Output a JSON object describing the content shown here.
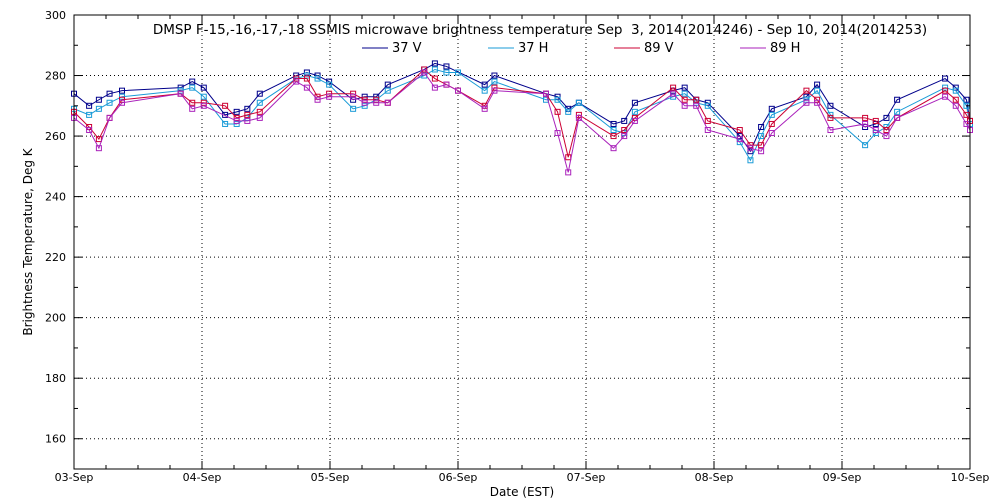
{
  "chart_data": {
    "type": "line",
    "title": "DMSP F-15,-16,-17,-18 SSMIS microwave brightness temperature Sep  3, 2014(2014246) - Sep 10, 2014(2014253)",
    "xlabel": "Date (EST)",
    "ylabel": "Brightness Temperature, Deg K",
    "ylim": [
      150,
      300
    ],
    "yticks": [
      160,
      180,
      200,
      220,
      240,
      260,
      280,
      300
    ],
    "xlim": [
      "2014-09-03",
      "2014-09-10"
    ],
    "xticks": [
      "03-Sep",
      "04-Sep",
      "05-Sep",
      "06-Sep",
      "07-Sep",
      "08-Sep",
      "09-Sep",
      "10-Sep"
    ],
    "grid": true,
    "legend_position": "top-center",
    "series": [
      {
        "name": "37 V",
        "color": "#00008b",
        "points": [
          {
            "x": "2014-09-03T00:00",
            "y": 274
          },
          {
            "x": "2014-09-03T02:50",
            "y": 270
          },
          {
            "x": "2014-09-03T04:40",
            "y": 272
          },
          {
            "x": "2014-09-03T06:40",
            "y": 274
          },
          {
            "x": "2014-09-03T09:00",
            "y": 275
          },
          {
            "x": "2014-09-03T20:00",
            "y": 276
          },
          {
            "x": "2014-09-03T22:10",
            "y": 278
          },
          {
            "x": "2014-09-04T00:20",
            "y": 276
          },
          {
            "x": "2014-09-04T04:20",
            "y": 267
          },
          {
            "x": "2014-09-04T06:30",
            "y": 268
          },
          {
            "x": "2014-09-04T08:30",
            "y": 269
          },
          {
            "x": "2014-09-04T10:50",
            "y": 274
          },
          {
            "x": "2014-09-04T17:40",
            "y": 280
          },
          {
            "x": "2014-09-04T19:40",
            "y": 281
          },
          {
            "x": "2014-09-04T21:40",
            "y": 280
          },
          {
            "x": "2014-09-04T23:50",
            "y": 278
          },
          {
            "x": "2014-09-05T04:20",
            "y": 272
          },
          {
            "x": "2014-09-05T06:30",
            "y": 273
          },
          {
            "x": "2014-09-05T08:40",
            "y": 273
          },
          {
            "x": "2014-09-05T10:50",
            "y": 277
          },
          {
            "x": "2014-09-05T17:40",
            "y": 282
          },
          {
            "x": "2014-09-05T19:40",
            "y": 284
          },
          {
            "x": "2014-09-05T21:50",
            "y": 283
          },
          {
            "x": "2014-09-06T05:00",
            "y": 277
          },
          {
            "x": "2014-09-06T06:50",
            "y": 280
          },
          {
            "x": "2014-09-06T16:30",
            "y": 274
          },
          {
            "x": "2014-09-06T18:40",
            "y": 273
          },
          {
            "x": "2014-09-06T20:40",
            "y": 269
          },
          {
            "x": "2014-09-06T22:40",
            "y": 271
          },
          {
            "x": "2014-09-07T05:10",
            "y": 264
          },
          {
            "x": "2014-09-07T07:10",
            "y": 265
          },
          {
            "x": "2014-09-07T09:10",
            "y": 271
          },
          {
            "x": "2014-09-07T16:20",
            "y": 275
          },
          {
            "x": "2014-09-07T18:30",
            "y": 276
          },
          {
            "x": "2014-09-07T20:40",
            "y": 272
          },
          {
            "x": "2014-09-07T22:50",
            "y": 271
          },
          {
            "x": "2014-09-08T04:50",
            "y": 260
          },
          {
            "x": "2014-09-08T06:50",
            "y": 255
          },
          {
            "x": "2014-09-08T08:50",
            "y": 263
          },
          {
            "x": "2014-09-08T10:50",
            "y": 269
          },
          {
            "x": "2014-09-08T17:20",
            "y": 273
          },
          {
            "x": "2014-09-08T19:20",
            "y": 277
          },
          {
            "x": "2014-09-08T21:50",
            "y": 270
          },
          {
            "x": "2014-09-09T04:20",
            "y": 263
          },
          {
            "x": "2014-09-09T06:20",
            "y": 264
          },
          {
            "x": "2014-09-09T08:20",
            "y": 266
          },
          {
            "x": "2014-09-09T10:20",
            "y": 272
          },
          {
            "x": "2014-09-09T19:20",
            "y": 279
          },
          {
            "x": "2014-09-09T21:20",
            "y": 276
          },
          {
            "x": "2014-09-09T23:20",
            "y": 272
          },
          {
            "x": "2014-09-10T00:00",
            "y": 265
          }
        ]
      },
      {
        "name": "37 H",
        "color": "#1a9bd7",
        "points": [
          {
            "x": "2014-09-03T00:00",
            "y": 269
          },
          {
            "x": "2014-09-03T02:50",
            "y": 267
          },
          {
            "x": "2014-09-03T04:40",
            "y": 269
          },
          {
            "x": "2014-09-03T06:40",
            "y": 271
          },
          {
            "x": "2014-09-03T09:00",
            "y": 273
          },
          {
            "x": "2014-09-03T20:00",
            "y": 275
          },
          {
            "x": "2014-09-03T22:10",
            "y": 276
          },
          {
            "x": "2014-09-04T00:20",
            "y": 273
          },
          {
            "x": "2014-09-04T04:20",
            "y": 264
          },
          {
            "x": "2014-09-04T06:30",
            "y": 264
          },
          {
            "x": "2014-09-04T08:30",
            "y": 266
          },
          {
            "x": "2014-09-04T10:50",
            "y": 271
          },
          {
            "x": "2014-09-04T17:40",
            "y": 279
          },
          {
            "x": "2014-09-04T19:40",
            "y": 280
          },
          {
            "x": "2014-09-04T21:40",
            "y": 279
          },
          {
            "x": "2014-09-04T23:50",
            "y": 277
          },
          {
            "x": "2014-09-05T04:20",
            "y": 269
          },
          {
            "x": "2014-09-05T06:30",
            "y": 270
          },
          {
            "x": "2014-09-05T08:40",
            "y": 272
          },
          {
            "x": "2014-09-05T10:50",
            "y": 275
          },
          {
            "x": "2014-09-05T17:40",
            "y": 280
          },
          {
            "x": "2014-09-05T19:40",
            "y": 282
          },
          {
            "x": "2014-09-05T21:50",
            "y": 281
          },
          {
            "x": "2014-09-06T00:00",
            "y": 281
          },
          {
            "x": "2014-09-06T05:00",
            "y": 275
          },
          {
            "x": "2014-09-06T06:50",
            "y": 278
          },
          {
            "x": "2014-09-06T16:30",
            "y": 272
          },
          {
            "x": "2014-09-06T18:40",
            "y": 272
          },
          {
            "x": "2014-09-06T20:40",
            "y": 268
          },
          {
            "x": "2014-09-06T22:40",
            "y": 271
          },
          {
            "x": "2014-09-07T05:10",
            "y": 262
          },
          {
            "x": "2014-09-07T07:10",
            "y": 261
          },
          {
            "x": "2014-09-07T09:10",
            "y": 268
          },
          {
            "x": "2014-09-07T16:20",
            "y": 273
          },
          {
            "x": "2014-09-07T18:30",
            "y": 274
          },
          {
            "x": "2014-09-07T20:40",
            "y": 271
          },
          {
            "x": "2014-09-07T22:50",
            "y": 270
          },
          {
            "x": "2014-09-08T04:50",
            "y": 258
          },
          {
            "x": "2014-09-08T06:50",
            "y": 252
          },
          {
            "x": "2014-09-08T08:50",
            "y": 260
          },
          {
            "x": "2014-09-08T10:50",
            "y": 267
          },
          {
            "x": "2014-09-08T17:20",
            "y": 272
          },
          {
            "x": "2014-09-08T19:20",
            "y": 275
          },
          {
            "x": "2014-09-08T21:50",
            "y": 267
          },
          {
            "x": "2014-09-09T04:20",
            "y": 257
          },
          {
            "x": "2014-09-09T06:20",
            "y": 261
          },
          {
            "x": "2014-09-09T08:20",
            "y": 263
          },
          {
            "x": "2014-09-09T10:20",
            "y": 268
          },
          {
            "x": "2014-09-09T19:20",
            "y": 276
          },
          {
            "x": "2014-09-09T21:20",
            "y": 275
          },
          {
            "x": "2014-09-09T23:20",
            "y": 270
          },
          {
            "x": "2014-09-10T00:00",
            "y": 264
          }
        ]
      },
      {
        "name": "89 V",
        "color": "#cc0033",
        "points": [
          {
            "x": "2014-09-03T00:00",
            "y": 268
          },
          {
            "x": "2014-09-03T02:50",
            "y": 263
          },
          {
            "x": "2014-09-03T04:40",
            "y": 259
          },
          {
            "x": "2014-09-03T06:40",
            "y": 266
          },
          {
            "x": "2014-09-03T09:00",
            "y": 272
          },
          {
            "x": "2014-09-03T20:00",
            "y": 274
          },
          {
            "x": "2014-09-03T22:10",
            "y": 271
          },
          {
            "x": "2014-09-04T00:20",
            "y": 271
          },
          {
            "x": "2014-09-04T04:20",
            "y": 270
          },
          {
            "x": "2014-09-04T06:30",
            "y": 266
          },
          {
            "x": "2014-09-04T08:30",
            "y": 267
          },
          {
            "x": "2014-09-04T10:50",
            "y": 268
          },
          {
            "x": "2014-09-04T17:40",
            "y": 279
          },
          {
            "x": "2014-09-04T19:40",
            "y": 279
          },
          {
            "x": "2014-09-04T21:40",
            "y": 273
          },
          {
            "x": "2014-09-04T23:50",
            "y": 274
          },
          {
            "x": "2014-09-05T04:20",
            "y": 274
          },
          {
            "x": "2014-09-05T06:30",
            "y": 272
          },
          {
            "x": "2014-09-05T08:40",
            "y": 272
          },
          {
            "x": "2014-09-05T10:50",
            "y": 271
          },
          {
            "x": "2014-09-05T17:40",
            "y": 282
          },
          {
            "x": "2014-09-05T19:40",
            "y": 279
          },
          {
            "x": "2014-09-05T21:50",
            "y": 277
          },
          {
            "x": "2014-09-06T00:00",
            "y": 275
          },
          {
            "x": "2014-09-06T05:00",
            "y": 270
          },
          {
            "x": "2014-09-06T06:50",
            "y": 276
          },
          {
            "x": "2014-09-06T16:30",
            "y": 274
          },
          {
            "x": "2014-09-06T18:40",
            "y": 268
          },
          {
            "x": "2014-09-06T20:40",
            "y": 253
          },
          {
            "x": "2014-09-06T22:40",
            "y": 267
          },
          {
            "x": "2014-09-07T05:10",
            "y": 260
          },
          {
            "x": "2014-09-07T07:10",
            "y": 262
          },
          {
            "x": "2014-09-07T09:10",
            "y": 266
          },
          {
            "x": "2014-09-07T16:20",
            "y": 276
          },
          {
            "x": "2014-09-07T18:30",
            "y": 272
          },
          {
            "x": "2014-09-07T20:40",
            "y": 272
          },
          {
            "x": "2014-09-07T22:50",
            "y": 265
          },
          {
            "x": "2014-09-08T04:50",
            "y": 262
          },
          {
            "x": "2014-09-08T06:50",
            "y": 257
          },
          {
            "x": "2014-09-08T08:50",
            "y": 257
          },
          {
            "x": "2014-09-08T10:50",
            "y": 264
          },
          {
            "x": "2014-09-08T17:20",
            "y": 275
          },
          {
            "x": "2014-09-08T19:20",
            "y": 272
          },
          {
            "x": "2014-09-08T21:50",
            "y": 266
          },
          {
            "x": "2014-09-09T04:20",
            "y": 266
          },
          {
            "x": "2014-09-09T06:20",
            "y": 265
          },
          {
            "x": "2014-09-09T08:20",
            "y": 262
          },
          {
            "x": "2014-09-09T10:20",
            "y": 266
          },
          {
            "x": "2014-09-09T19:20",
            "y": 275
          },
          {
            "x": "2014-09-09T21:20",
            "y": 272
          },
          {
            "x": "2014-09-09T23:20",
            "y": 267
          },
          {
            "x": "2014-09-10T00:00",
            "y": 265
          }
        ]
      },
      {
        "name": "89 H",
        "color": "#aa22bb",
        "points": [
          {
            "x": "2014-09-03T00:00",
            "y": 266
          },
          {
            "x": "2014-09-03T02:50",
            "y": 262
          },
          {
            "x": "2014-09-03T04:40",
            "y": 256
          },
          {
            "x": "2014-09-03T06:40",
            "y": 266
          },
          {
            "x": "2014-09-03T09:00",
            "y": 271
          },
          {
            "x": "2014-09-03T20:00",
            "y": 274
          },
          {
            "x": "2014-09-03T22:10",
            "y": 269
          },
          {
            "x": "2014-09-04T00:20",
            "y": 270
          },
          {
            "x": "2014-09-04T06:30",
            "y": 265
          },
          {
            "x": "2014-09-04T08:30",
            "y": 265
          },
          {
            "x": "2014-09-04T10:50",
            "y": 266
          },
          {
            "x": "2014-09-04T17:40",
            "y": 278
          },
          {
            "x": "2014-09-04T19:40",
            "y": 276
          },
          {
            "x": "2014-09-04T21:40",
            "y": 272
          },
          {
            "x": "2014-09-04T23:50",
            "y": 273
          },
          {
            "x": "2014-09-05T04:20",
            "y": 273
          },
          {
            "x": "2014-09-05T06:30",
            "y": 271
          },
          {
            "x": "2014-09-05T08:40",
            "y": 271
          },
          {
            "x": "2014-09-05T10:50",
            "y": 271
          },
          {
            "x": "2014-09-05T17:40",
            "y": 281
          },
          {
            "x": "2014-09-05T19:40",
            "y": 276
          },
          {
            "x": "2014-09-05T21:50",
            "y": 277
          },
          {
            "x": "2014-09-06T00:00",
            "y": 275
          },
          {
            "x": "2014-09-06T05:00",
            "y": 269
          },
          {
            "x": "2014-09-06T06:50",
            "y": 275
          },
          {
            "x": "2014-09-06T16:30",
            "y": 274
          },
          {
            "x": "2014-09-06T18:40",
            "y": 261
          },
          {
            "x": "2014-09-06T20:40",
            "y": 248
          },
          {
            "x": "2014-09-06T22:40",
            "y": 266
          },
          {
            "x": "2014-09-07T05:10",
            "y": 256
          },
          {
            "x": "2014-09-07T07:10",
            "y": 260
          },
          {
            "x": "2014-09-07T09:10",
            "y": 265
          },
          {
            "x": "2014-09-07T16:20",
            "y": 274
          },
          {
            "x": "2014-09-07T18:30",
            "y": 270
          },
          {
            "x": "2014-09-07T20:40",
            "y": 270
          },
          {
            "x": "2014-09-07T22:50",
            "y": 262
          },
          {
            "x": "2014-09-08T04:50",
            "y": 259
          },
          {
            "x": "2014-09-08T06:50",
            "y": 256
          },
          {
            "x": "2014-09-08T08:50",
            "y": 255
          },
          {
            "x": "2014-09-08T10:50",
            "y": 261
          },
          {
            "x": "2014-09-08T17:20",
            "y": 271
          },
          {
            "x": "2014-09-08T19:20",
            "y": 271
          },
          {
            "x": "2014-09-08T21:50",
            "y": 262
          },
          {
            "x": "2014-09-09T04:20",
            "y": 264
          },
          {
            "x": "2014-09-09T06:20",
            "y": 262
          },
          {
            "x": "2014-09-09T08:20",
            "y": 260
          },
          {
            "x": "2014-09-09T10:20",
            "y": 266
          },
          {
            "x": "2014-09-09T19:20",
            "y": 273
          },
          {
            "x": "2014-09-09T21:20",
            "y": 270
          },
          {
            "x": "2014-09-09T23:20",
            "y": 264
          },
          {
            "x": "2014-09-10T00:00",
            "y": 262
          }
        ]
      }
    ]
  }
}
